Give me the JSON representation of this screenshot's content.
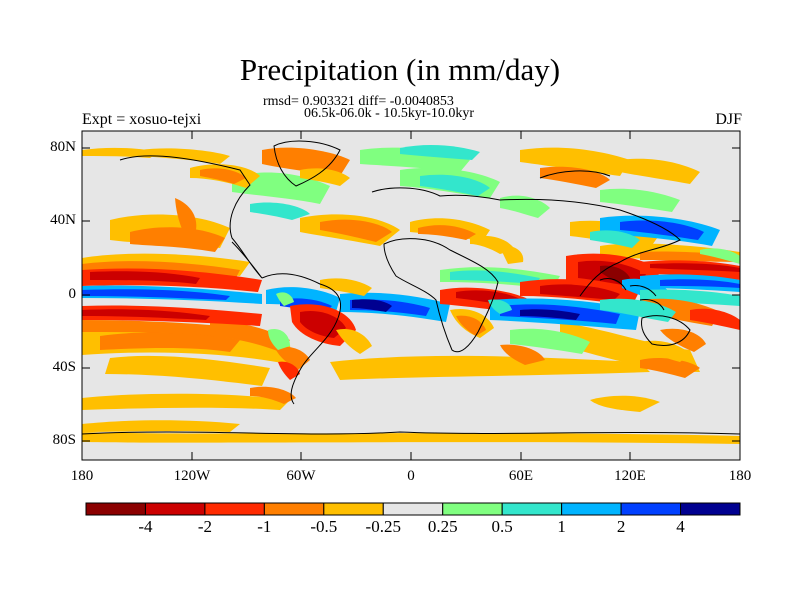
{
  "title": "Precipitation (in mm/day)",
  "stats_line": "rmsd= 0.903321 diff= -0.0040853",
  "period_line": "06.5k-06.0k - 10.5kyr-10.0kyr",
  "experiment": "Expt = xosuo-tejxi",
  "season": "DJF",
  "axes": {
    "lat_labels": [
      "80N",
      "40N",
      "0",
      "40S",
      "80S"
    ],
    "lon_labels": [
      "180",
      "120W",
      "60W",
      "0",
      "60E",
      "120E",
      "180"
    ]
  },
  "colorbar": {
    "colors": [
      "#8b0000",
      "#cc0000",
      "#ff2a00",
      "#ff7f00",
      "#ffbf00",
      "#e6e6e6",
      "#80ff80",
      "#33e6cc",
      "#00b4ff",
      "#0040ff",
      "#000090"
    ],
    "labels": [
      "-4",
      "-2",
      "-1",
      "-0.5",
      "-0.25",
      "0.25",
      "0.5",
      "1",
      "2",
      "4"
    ]
  },
  "map_background": "#e6e6e6"
}
